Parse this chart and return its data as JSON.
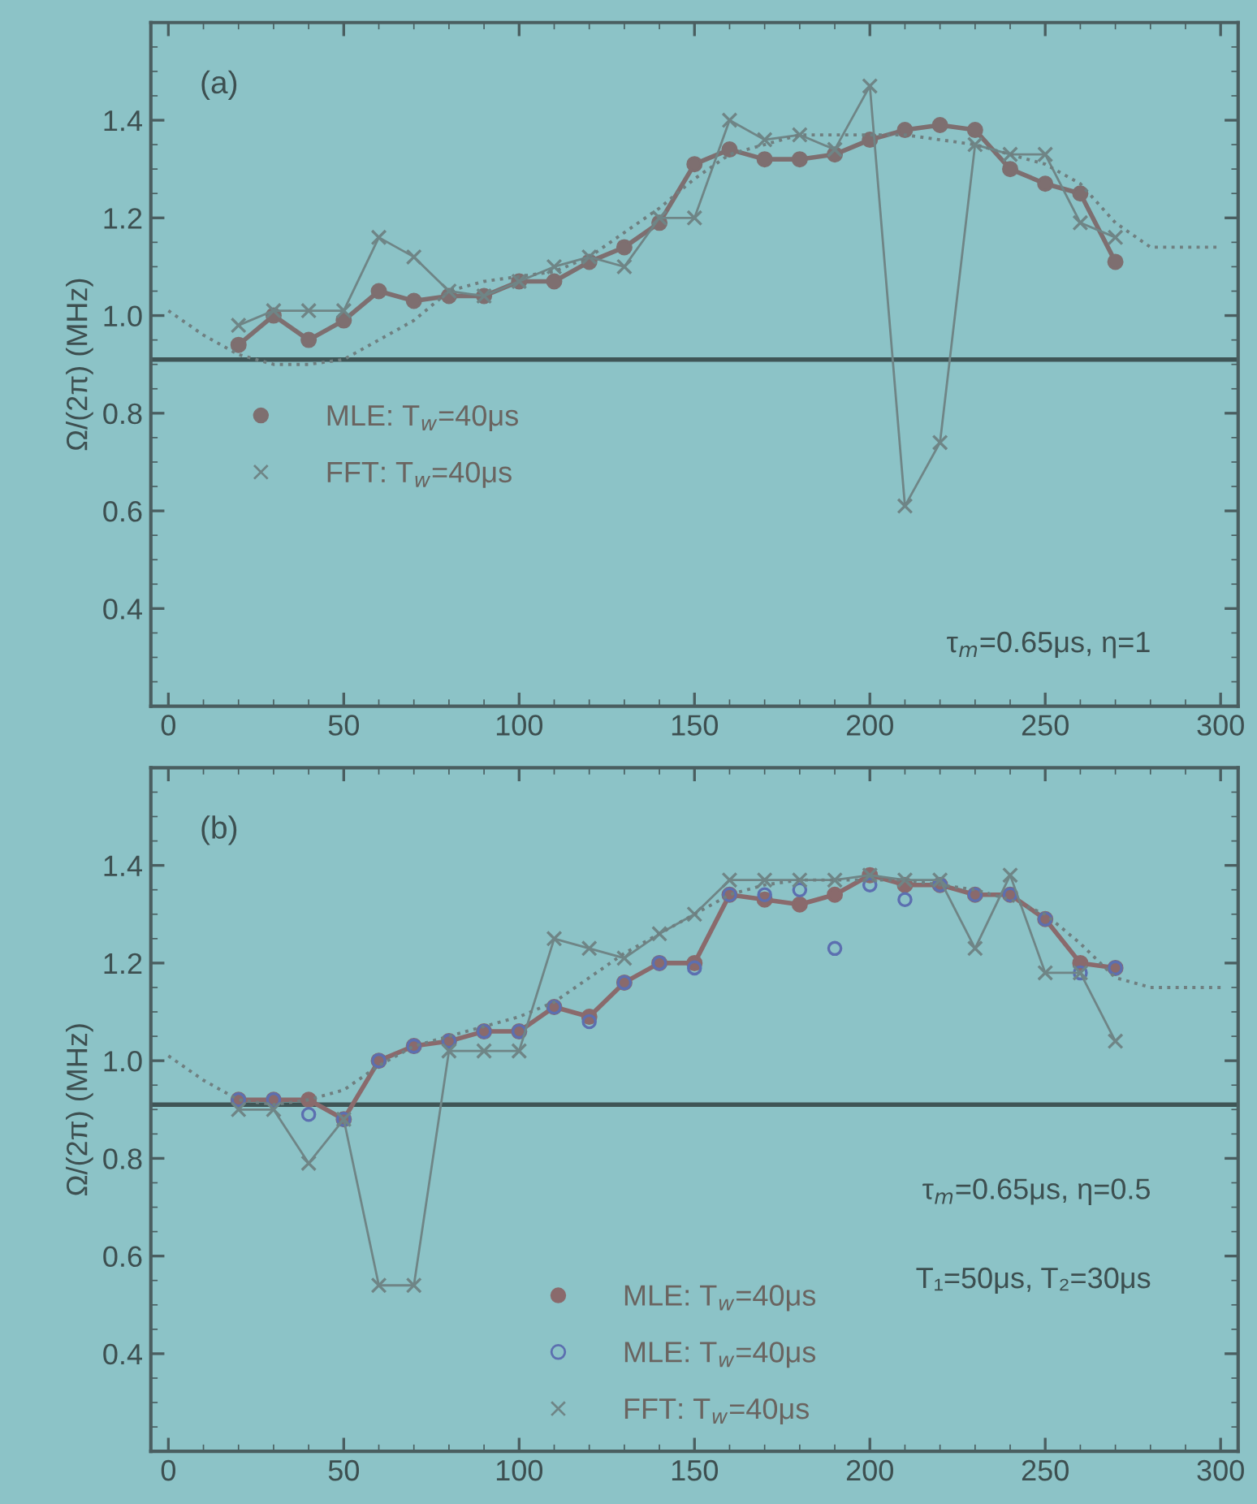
{
  "chart_data": [
    {
      "type": "line",
      "ylabel": "Ω/(2π) (MHz)",
      "annotations": [
        "(a)",
        "τ$_{m}$=0.65μs, η=1"
      ],
      "xlim": [
        -5,
        305
      ],
      "xticks": [
        0,
        50,
        100,
        150,
        200,
        250,
        300
      ],
      "ylim": [
        0.2,
        1.6
      ],
      "yticks": [
        0.4,
        0.6,
        0.8,
        {
          "value": 1,
          "label": "1.0"
        },
        1.2,
        1.4
      ],
      "legend": "left",
      "ref_lines": [
        {
          "axis": "y",
          "value": 0.91,
          "color": "#3f5556"
        }
      ],
      "series": [
        {
          "name": "MLE: T$_{w}$=40μs",
          "type": "line",
          "marker": "circle",
          "color": "#7e6f70",
          "x": [
            20,
            30,
            40,
            50,
            60,
            70,
            80,
            90,
            100,
            110,
            120,
            130,
            140,
            150,
            160,
            170,
            180,
            190,
            200,
            210,
            220,
            230,
            240,
            250,
            260,
            270
          ],
          "values": [
            0.94,
            1.0,
            0.95,
            0.99,
            1.05,
            1.03,
            1.04,
            1.04,
            1.07,
            1.07,
            1.11,
            1.14,
            1.19,
            1.31,
            1.34,
            1.32,
            1.32,
            1.33,
            1.36,
            1.38,
            1.39,
            1.38,
            1.3,
            1.27,
            1.25,
            1.11
          ]
        },
        {
          "name": "FFT: T$_{w}$=40μs",
          "type": "line",
          "marker": "cross",
          "color": "#6f8586",
          "x": [
            20,
            30,
            40,
            50,
            60,
            70,
            80,
            90,
            100,
            110,
            120,
            130,
            140,
            150,
            160,
            170,
            180,
            190,
            200,
            210,
            220,
            230,
            240,
            250,
            260,
            270
          ],
          "values": [
            0.98,
            1.01,
            1.01,
            1.01,
            1.16,
            1.12,
            1.05,
            1.04,
            1.07,
            1.1,
            1.12,
            1.1,
            1.2,
            1.2,
            1.4,
            1.36,
            1.37,
            1.34,
            1.47,
            0.61,
            0.74,
            1.35,
            1.33,
            1.33,
            1.19,
            1.16
          ]
        },
        {
          "type": "line",
          "line_style": "dotted",
          "marker": "none",
          "color": "#6f7f80",
          "x": [
            0,
            10,
            20,
            30,
            40,
            50,
            60,
            70,
            80,
            90,
            100,
            110,
            120,
            130,
            140,
            150,
            160,
            170,
            180,
            190,
            200,
            210,
            220,
            230,
            240,
            250,
            260,
            270,
            280,
            290,
            300
          ],
          "values": [
            1.01,
            0.96,
            0.92,
            0.9,
            0.9,
            0.91,
            0.95,
            0.99,
            1.05,
            1.07,
            1.08,
            1.09,
            1.12,
            1.17,
            1.22,
            1.28,
            1.33,
            1.35,
            1.37,
            1.37,
            1.37,
            1.37,
            1.36,
            1.35,
            1.33,
            1.31,
            1.27,
            1.19,
            1.14,
            1.14,
            1.14
          ]
        }
      ]
    },
    {
      "type": "line",
      "ylabel": "Ω/(2π) (MHz)",
      "annotations": [
        "(b)",
        "τ$_{m}$=0.65μs, η=0.5",
        "T₁=50μs, T₂=30μs"
      ],
      "xlim": [
        -5,
        305
      ],
      "xticks": [
        0,
        50,
        100,
        150,
        200,
        250,
        300
      ],
      "ylim": [
        0.2,
        1.6
      ],
      "yticks": [
        0.4,
        0.6,
        0.8,
        {
          "value": 1,
          "label": "1.0"
        },
        1.2,
        1.4
      ],
      "legend": "bottom",
      "ref_lines": [
        {
          "axis": "y",
          "value": 0.91,
          "color": "#3f5556"
        }
      ],
      "series": [
        {
          "name": "MLE: T$_{w}$=40μs",
          "type": "line",
          "marker": "circle",
          "color": "#8a6a6c",
          "x": [
            20,
            30,
            40,
            50,
            60,
            70,
            80,
            90,
            100,
            110,
            120,
            130,
            140,
            150,
            160,
            170,
            180,
            190,
            200,
            210,
            220,
            230,
            240,
            250,
            260,
            270
          ],
          "values": [
            0.92,
            0.92,
            0.92,
            0.88,
            1.0,
            1.03,
            1.04,
            1.06,
            1.06,
            1.11,
            1.09,
            1.16,
            1.2,
            1.2,
            1.34,
            1.33,
            1.32,
            1.34,
            1.38,
            1.36,
            1.36,
            1.34,
            1.34,
            1.29,
            1.2,
            1.19
          ]
        },
        {
          "name": "MLE: T$_{w}$=40μs",
          "type": "scatter",
          "marker": "circle",
          "color": "#5c6fb0",
          "x": [
            20,
            30,
            40,
            50,
            60,
            70,
            80,
            90,
            100,
            110,
            120,
            130,
            140,
            150,
            160,
            170,
            180,
            190,
            200,
            210,
            220,
            230,
            240,
            250,
            260,
            270
          ],
          "values": [
            0.92,
            0.92,
            0.89,
            0.88,
            1.0,
            1.03,
            1.04,
            1.06,
            1.06,
            1.11,
            1.08,
            1.16,
            1.2,
            1.19,
            1.34,
            1.34,
            1.35,
            1.23,
            1.36,
            1.33,
            1.36,
            1.34,
            1.34,
            1.29,
            1.18,
            1.19
          ]
        },
        {
          "name": "FFT: T$_{w}$=40μs",
          "type": "line",
          "marker": "cross",
          "color": "#6f8586",
          "x": [
            20,
            30,
            40,
            50,
            60,
            70,
            80,
            90,
            100,
            110,
            120,
            130,
            140,
            150,
            160,
            170,
            180,
            190,
            200,
            210,
            220,
            230,
            240,
            250,
            260,
            270
          ],
          "values": [
            0.9,
            0.9,
            0.79,
            0.88,
            0.54,
            0.54,
            1.02,
            1.02,
            1.02,
            1.25,
            1.23,
            1.21,
            1.26,
            1.3,
            1.37,
            1.37,
            1.37,
            1.37,
            1.38,
            1.37,
            1.37,
            1.23,
            1.38,
            1.18,
            1.18,
            1.04
          ]
        },
        {
          "type": "line",
          "line_style": "dotted",
          "marker": "none",
          "color": "#6f7f80",
          "x": [
            0,
            10,
            20,
            30,
            40,
            50,
            60,
            70,
            80,
            90,
            100,
            110,
            120,
            130,
            140,
            150,
            160,
            170,
            180,
            190,
            200,
            210,
            220,
            230,
            240,
            250,
            260,
            270,
            280,
            290,
            300
          ],
          "values": [
            1.01,
            0.96,
            0.92,
            0.91,
            0.92,
            0.94,
            0.99,
            1.03,
            1.05,
            1.07,
            1.09,
            1.12,
            1.17,
            1.22,
            1.26,
            1.3,
            1.34,
            1.36,
            1.37,
            1.37,
            1.37,
            1.37,
            1.36,
            1.35,
            1.33,
            1.3,
            1.24,
            1.17,
            1.15,
            1.15,
            1.15
          ]
        }
      ]
    }
  ]
}
